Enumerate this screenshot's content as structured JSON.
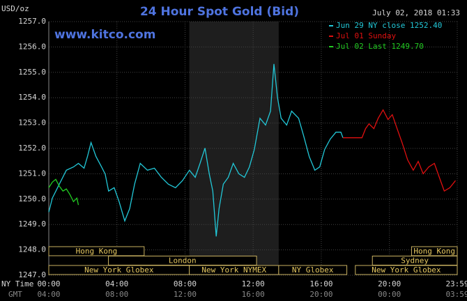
{
  "chart_data": {
    "type": "line",
    "title": "24 Hour Spot Gold (Bid)",
    "timestamp": "July 02, 2018 01:33",
    "watermark": "www.kitco.com",
    "y_label": "USD/oz",
    "x_label": "NY Time",
    "x2_label": "GMT",
    "xlim": [
      0,
      23.983
    ],
    "ylim": [
      1247,
      1257
    ],
    "xticks": [
      {
        "value": 0,
        "label": "00:00"
      },
      {
        "value": 4,
        "label": "04:00"
      },
      {
        "value": 8,
        "label": "08:00"
      },
      {
        "value": 12,
        "label": "12:00"
      },
      {
        "value": 16,
        "label": "16:00"
      },
      {
        "value": 20,
        "label": "20:00"
      },
      {
        "value": 23.983,
        "label": "23:59"
      }
    ],
    "x2ticks": [
      {
        "value": 0,
        "label": "04:00"
      },
      {
        "value": 4,
        "label": "08:00"
      },
      {
        "value": 8,
        "label": "12:00"
      },
      {
        "value": 12,
        "label": "16:00"
      },
      {
        "value": 16,
        "label": "20:00"
      },
      {
        "value": 20,
        "label": "00:00"
      },
      {
        "value": 23.983,
        "label": "03:59"
      }
    ],
    "yticks": [
      {
        "value": 1247,
        "label": "1247.0"
      },
      {
        "value": 1248,
        "label": "1248.0"
      },
      {
        "value": 1249,
        "label": "1249.0"
      },
      {
        "value": 1250,
        "label": "1250.0"
      },
      {
        "value": 1251,
        "label": "1251.0"
      },
      {
        "value": 1252,
        "label": "1252.0"
      },
      {
        "value": 1253,
        "label": "1253.0"
      },
      {
        "value": 1254,
        "label": "1254.0"
      },
      {
        "value": 1255,
        "label": "1255.0"
      },
      {
        "value": 1256,
        "label": "1256.0"
      },
      {
        "value": 1257,
        "label": "1257.0"
      }
    ],
    "grid": true,
    "series": [
      {
        "name": "Jun 29 NY close 1252.40",
        "color": "#22c8d8",
        "x": [
          0,
          0.21,
          0.62,
          1.03,
          1.45,
          1.74,
          2.07,
          2.27,
          2.48,
          2.77,
          3.1,
          3.31,
          3.51,
          3.84,
          4.13,
          4.46,
          4.75,
          5.04,
          5.37,
          5.79,
          6.2,
          6.61,
          7.02,
          7.44,
          7.85,
          8.26,
          8.6,
          8.88,
          9.17,
          9.42,
          9.63,
          9.83,
          10.0,
          10.25,
          10.54,
          10.83,
          11.16,
          11.49,
          11.78,
          12.07,
          12.4,
          12.73,
          13.02,
          13.22,
          13.43,
          13.64,
          13.97,
          14.26,
          14.67,
          14.96,
          15.29,
          15.62,
          15.91,
          16.2,
          16.53,
          16.86,
          17.15,
          17.27
        ],
        "values": [
          1249.49,
          1250.04,
          1250.59,
          1251.14,
          1251.27,
          1251.41,
          1251.22,
          1251.68,
          1252.23,
          1251.68,
          1251.27,
          1250.99,
          1250.32,
          1250.45,
          1249.9,
          1249.14,
          1249.63,
          1250.59,
          1251.41,
          1251.14,
          1251.22,
          1250.86,
          1250.59,
          1250.45,
          1250.73,
          1251.14,
          1250.86,
          1251.41,
          1252.01,
          1251.0,
          1250.32,
          1248.53,
          1249.63,
          1250.59,
          1250.86,
          1251.41,
          1251.0,
          1250.86,
          1251.27,
          1251.96,
          1253.19,
          1252.92,
          1253.47,
          1255.33,
          1254.01,
          1253.19,
          1252.92,
          1253.47,
          1253.19,
          1252.51,
          1251.68,
          1251.14,
          1251.27,
          1251.96,
          1252.37,
          1252.64,
          1252.64,
          1252.42
        ]
      },
      {
        "name": "Jul 01 Sunday",
        "color": "#e01010",
        "x": [
          17.27,
          18.39,
          18.6,
          18.8,
          19.09,
          19.34,
          19.63,
          19.92,
          20.17,
          20.45,
          20.74,
          21.07,
          21.4,
          21.69,
          21.98,
          22.31,
          22.64,
          22.93,
          23.22,
          23.55,
          23.88
        ],
        "values": [
          1252.42,
          1252.42,
          1252.78,
          1252.97,
          1252.78,
          1253.19,
          1253.52,
          1253.14,
          1253.33,
          1252.78,
          1252.23,
          1251.55,
          1251.14,
          1251.49,
          1251.0,
          1251.27,
          1251.41,
          1250.86,
          1250.32,
          1250.45,
          1250.73
        ]
      },
      {
        "name": "Jul 02 Last 1249.70",
        "color": "#22cc22",
        "x": [
          0,
          0.21,
          0.41,
          0.62,
          0.83,
          1.03,
          1.24,
          1.45,
          1.65,
          1.74
        ],
        "values": [
          1250.45,
          1250.67,
          1250.78,
          1250.51,
          1250.32,
          1250.4,
          1250.18,
          1249.9,
          1250.04,
          1249.77
        ]
      }
    ],
    "sessions": [
      {
        "name": "Hong Kong",
        "start": 0,
        "end": 5.6
      },
      {
        "name": "Hong Kong",
        "start": 21.3,
        "end": 23.983
      },
      {
        "name": "London",
        "start": 3.5,
        "end": 12.2
      },
      {
        "name": "Sydney",
        "start": 19,
        "end": 23.983
      },
      {
        "name": "New York Globex",
        "start": 0,
        "end": 8.25
      },
      {
        "name": "New York NYMEX",
        "start": 8.25,
        "end": 13.5
      },
      {
        "name": "NY Globex",
        "start": 13.5,
        "end": 17.5
      },
      {
        "name": "New York Globex",
        "start": 18,
        "end": 23.983
      }
    ]
  }
}
